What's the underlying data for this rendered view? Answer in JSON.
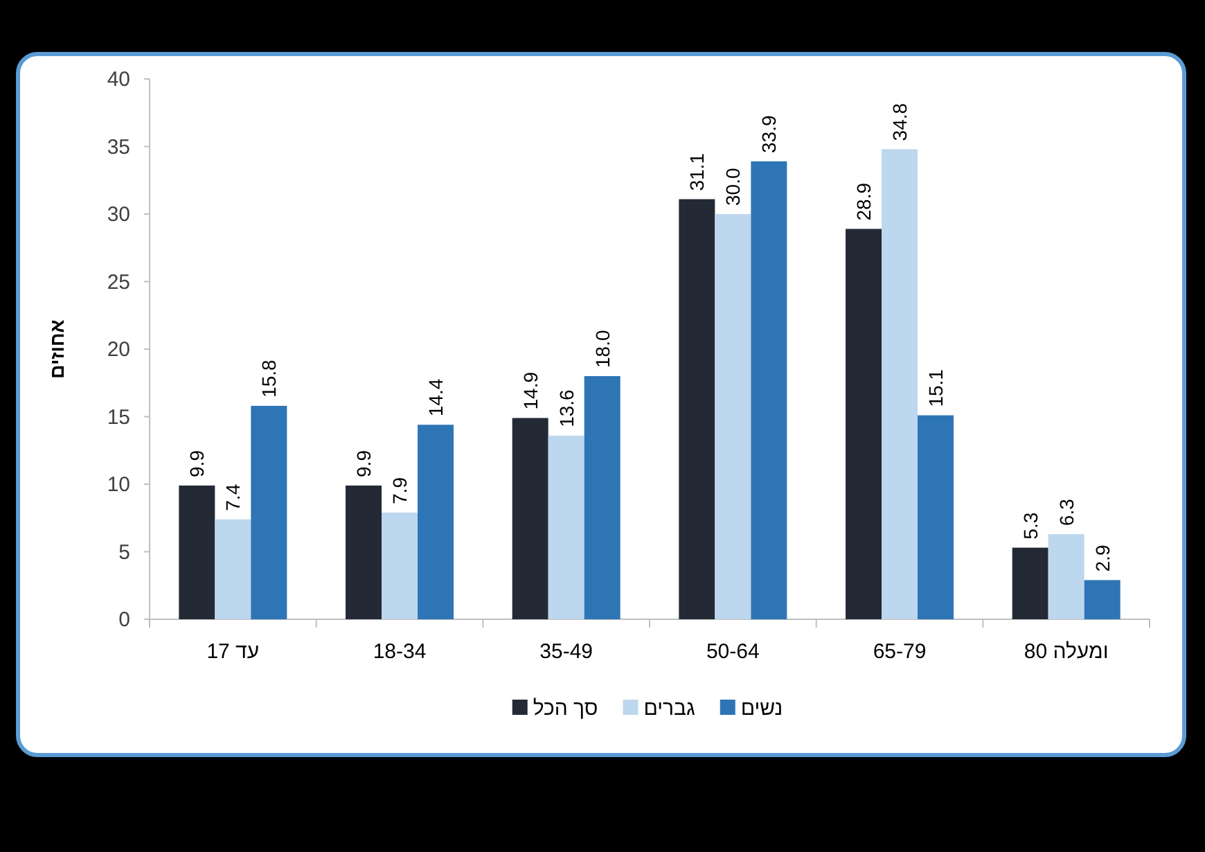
{
  "chart_data": {
    "type": "bar",
    "ylabel": "אחוזים",
    "categories": [
      "עד 17",
      "18-34",
      "35-49",
      "50-64",
      "65-79",
      "80 ומעלה"
    ],
    "series": [
      {
        "name": "סך הכל",
        "color": "#232a35",
        "values": [
          9.9,
          9.9,
          14.9,
          31.1,
          28.9,
          5.3
        ],
        "value_labels": [
          "9.9",
          "9.9",
          "14.9",
          "31.1",
          "28.9",
          "5.3"
        ]
      },
      {
        "name": "גברים",
        "color": "#bdd7ee",
        "values": [
          7.4,
          7.9,
          13.6,
          30.0,
          34.8,
          6.3
        ],
        "value_labels": [
          "7.4",
          "7.9",
          "13.6",
          "30.0",
          "34.8",
          "6.3"
        ]
      },
      {
        "name": "נשים",
        "color": "#2e75b6",
        "values": [
          15.8,
          14.4,
          18.0,
          33.9,
          15.1,
          2.9
        ],
        "value_labels": [
          "15.8",
          "14.4",
          "18.0",
          "33.9",
          "15.1",
          "2.9"
        ]
      }
    ],
    "ylim": [
      0,
      40
    ],
    "yticks": [
      0,
      5,
      10,
      15,
      20,
      25,
      30,
      35,
      40
    ],
    "legend": "bottom",
    "grid": false
  }
}
